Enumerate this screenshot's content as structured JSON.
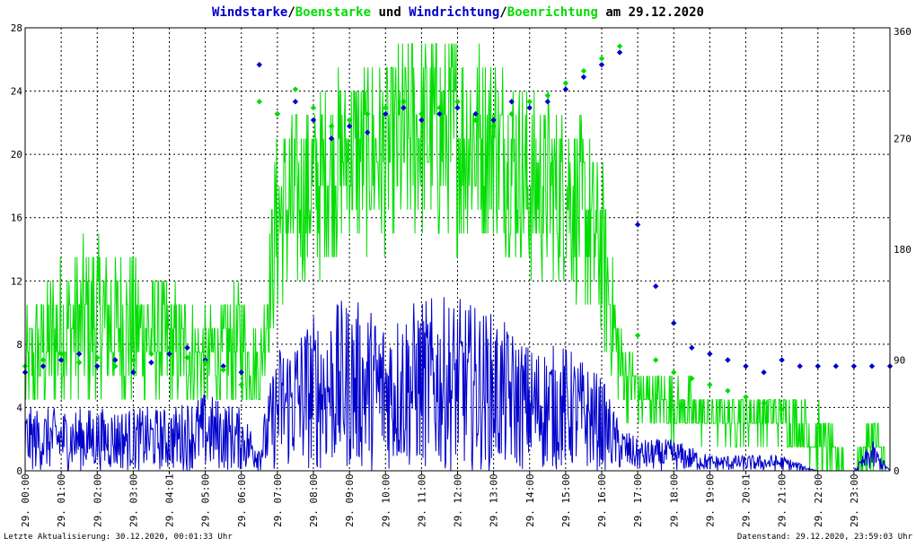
{
  "title": {
    "part1": "Windstarke",
    "slash1": "/",
    "part2": "Boenstarke",
    "part3": " und ",
    "part4": "Windrichtung",
    "slash2": "/",
    "part5": "Boenrichtung",
    "part6": " am 29.12.2020"
  },
  "footer": {
    "left": "Letzte Aktualisierung: 30.12.2020, 00:01:33 Uhr",
    "right": "Datenstand: 29.12.2020, 23:59:03 Uhr"
  },
  "colors": {
    "wind": "#0000cc",
    "gust": "#00dd00",
    "title_black": "#000000",
    "grid": "#000000",
    "background": "#ffffff"
  },
  "chart_data": {
    "type": "line",
    "title": "Windstarke/Boenstarke und Windrichtung/Boenrichtung am 29.12.2020",
    "x_tick_labels": [
      "29. 00:00",
      "29. 01:00",
      "29. 02:00",
      "29. 03:00",
      "29. 04:01",
      "29. 05:00",
      "29. 06:00",
      "29. 07:00",
      "29. 08:00",
      "29. 09:00",
      "29. 10:00",
      "29. 11:00",
      "29. 12:00",
      "29. 13:00",
      "29. 14:00",
      "29. 15:00",
      "29. 16:00",
      "29. 17:00",
      "29. 18:00",
      "29. 19:00",
      "29. 20:01",
      "29. 21:00",
      "29. 22:00",
      "29. 23:00"
    ],
    "x_range_hours": [
      0,
      24
    ],
    "y_left": {
      "ticks": [
        0,
        4,
        8,
        12,
        16,
        20,
        24,
        28
      ],
      "range": [
        0,
        28
      ]
    },
    "y_right": {
      "ticks": [
        0,
        90,
        180,
        270,
        360
      ],
      "range": [
        0,
        360
      ]
    },
    "grid": true,
    "series": [
      {
        "name": "Windstarke",
        "color": "#0000cc",
        "axis": "left",
        "kind": "line",
        "x_hours": [
          0,
          1,
          2,
          3,
          4,
          5,
          6,
          6.5,
          7,
          8,
          9,
          10,
          11,
          12,
          13,
          14,
          15,
          16,
          16.5,
          17,
          18,
          19,
          20,
          21,
          22,
          23,
          23.5,
          24
        ],
        "low": [
          0,
          0,
          0,
          0,
          0,
          0,
          0,
          0,
          0,
          0,
          0,
          0,
          0,
          0,
          0,
          0,
          0,
          0,
          0,
          0,
          0,
          0,
          0,
          0,
          0,
          0,
          0,
          0
        ],
        "high": [
          4,
          4,
          4,
          4,
          4,
          5,
          4,
          2,
          8,
          10,
          11,
          10,
          11,
          11,
          10,
          8,
          8,
          6,
          3,
          2,
          2,
          1,
          1,
          1,
          0,
          0,
          2,
          0
        ]
      },
      {
        "name": "Boenstarke",
        "color": "#00dd00",
        "axis": "left",
        "kind": "line",
        "x_hours": [
          0,
          1,
          2,
          3,
          4,
          5,
          6,
          6.5,
          7,
          8,
          9,
          10,
          11,
          12,
          13,
          14,
          15,
          16,
          16.5,
          17,
          18,
          19,
          20,
          21,
          22,
          23,
          23.5,
          24
        ],
        "low": [
          3,
          4,
          4,
          4,
          4,
          4,
          4,
          4,
          10,
          12,
          14,
          14,
          15,
          14,
          15,
          12,
          12,
          8,
          4,
          3,
          2,
          2,
          2,
          2,
          0,
          0,
          0,
          0
        ],
        "high": [
          10,
          14,
          15,
          14,
          12,
          10,
          12,
          8,
          22,
          24,
          26,
          26,
          28,
          28,
          27,
          24,
          24,
          20,
          10,
          7,
          6,
          5,
          5,
          5,
          4,
          0,
          4,
          0
        ]
      },
      {
        "name": "Windrichtung",
        "color": "#0000cc",
        "axis": "right",
        "kind": "scatter",
        "x_hours": [
          0,
          0.5,
          1,
          1.5,
          2,
          2.5,
          3,
          3.5,
          4,
          4.5,
          5,
          5.5,
          6,
          6.5,
          7,
          7.5,
          8,
          8.5,
          9,
          9.5,
          10,
          10.5,
          11,
          11.5,
          12,
          12.5,
          13,
          13.5,
          14,
          14.5,
          15,
          15.5,
          16,
          16.5,
          17,
          17.5,
          18,
          18.5,
          19,
          19.5,
          20,
          20.5,
          21,
          21.5,
          22,
          22.5,
          23,
          23.5,
          24
        ],
        "y_deg": [
          80,
          85,
          90,
          95,
          85,
          90,
          80,
          88,
          95,
          100,
          90,
          85,
          80,
          330,
          290,
          300,
          285,
          270,
          280,
          275,
          290,
          295,
          285,
          290,
          295,
          290,
          285,
          300,
          295,
          300,
          310,
          320,
          330,
          340,
          200,
          150,
          120,
          100,
          95,
          90,
          85,
          80,
          90,
          85,
          85,
          85,
          85,
          85,
          85
        ]
      },
      {
        "name": "Boenrichtung",
        "color": "#00dd00",
        "axis": "right",
        "kind": "scatter",
        "x_hours": [
          0,
          0.5,
          1,
          1.5,
          2,
          2.5,
          3,
          3.5,
          4,
          4.5,
          5,
          5.5,
          6,
          6.5,
          7,
          7.5,
          8,
          8.5,
          9,
          9.5,
          10,
          10.5,
          11,
          11.5,
          12,
          12.5,
          13,
          13.5,
          14,
          14.5,
          15,
          15.5,
          16,
          16.5,
          17,
          17.5,
          18,
          18.5,
          19,
          19.5,
          20,
          20.5,
          21
        ],
        "y_deg": [
          85,
          90,
          95,
          88,
          92,
          85,
          90,
          95,
          100,
          92,
          88,
          82,
          70,
          300,
          290,
          310,
          295,
          280,
          285,
          290,
          295,
          300,
          290,
          295,
          300,
          285,
          280,
          290,
          300,
          305,
          315,
          325,
          335,
          345,
          110,
          90,
          80,
          75,
          70,
          65,
          60,
          55,
          50
        ]
      }
    ]
  }
}
